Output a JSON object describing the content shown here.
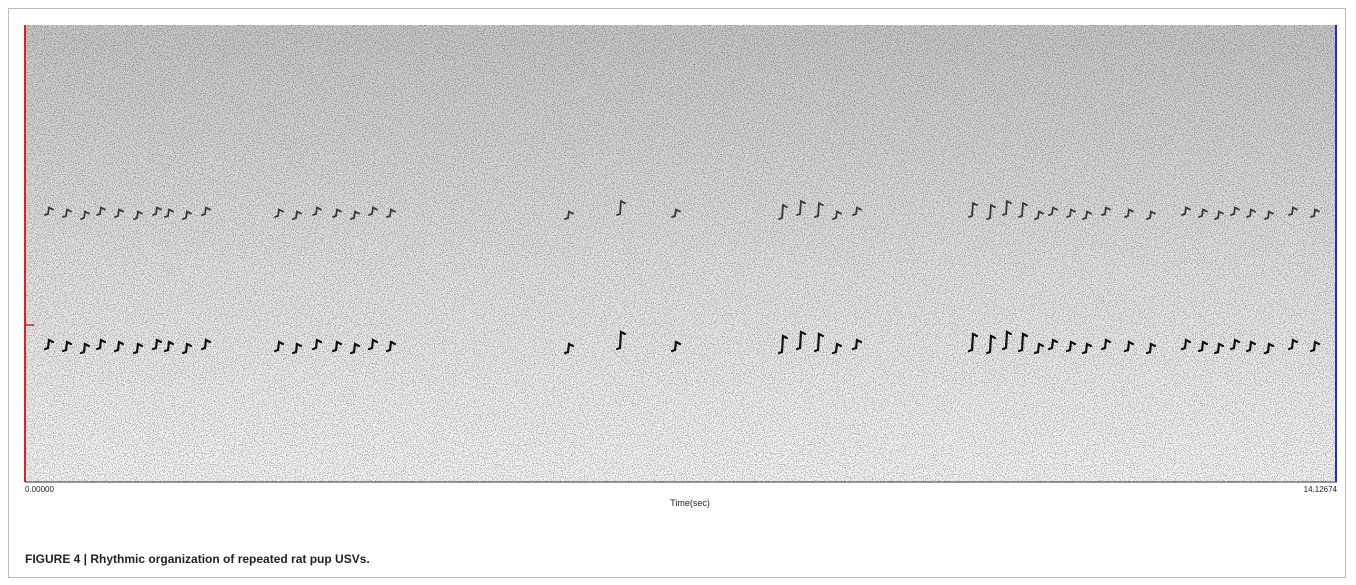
{
  "figure": {
    "axis": {
      "start_label": "0.00000",
      "end_label": "14.12674",
      "x_label": "Time(sec)"
    },
    "caption": "FIGURE 4 | Rhythmic organization of repeated rat pup USVs."
  }
}
